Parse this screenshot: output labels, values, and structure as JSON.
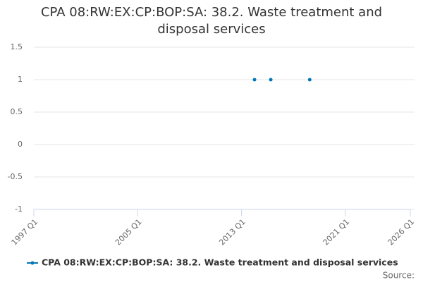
{
  "chart_data": {
    "type": "scatter",
    "title": "CPA 08:RW:EX:CP:BOP:SA: 38.2. Waste treatment and disposal services",
    "x": [
      "2014 Q1",
      "2015 Q2",
      "2018 Q2"
    ],
    "series": [
      {
        "name": "CPA 08:RW:EX:CP:BOP:SA: 38.2. Waste treatment and disposal services",
        "color": "#0077b6",
        "values": [
          1,
          1,
          1
        ]
      }
    ],
    "xlim": [
      "1997 Q1",
      "2026 Q1"
    ],
    "xticks": [
      "1997 Q1",
      "2005 Q1",
      "2013 Q1",
      "2021 Q1",
      "2026 Q1"
    ],
    "ylim": [
      -1,
      1.5
    ],
    "yticks": [
      -1,
      -0.5,
      0,
      0.5,
      1,
      1.5
    ],
    "grid": true,
    "legend": "bottom",
    "source": "Source:"
  }
}
